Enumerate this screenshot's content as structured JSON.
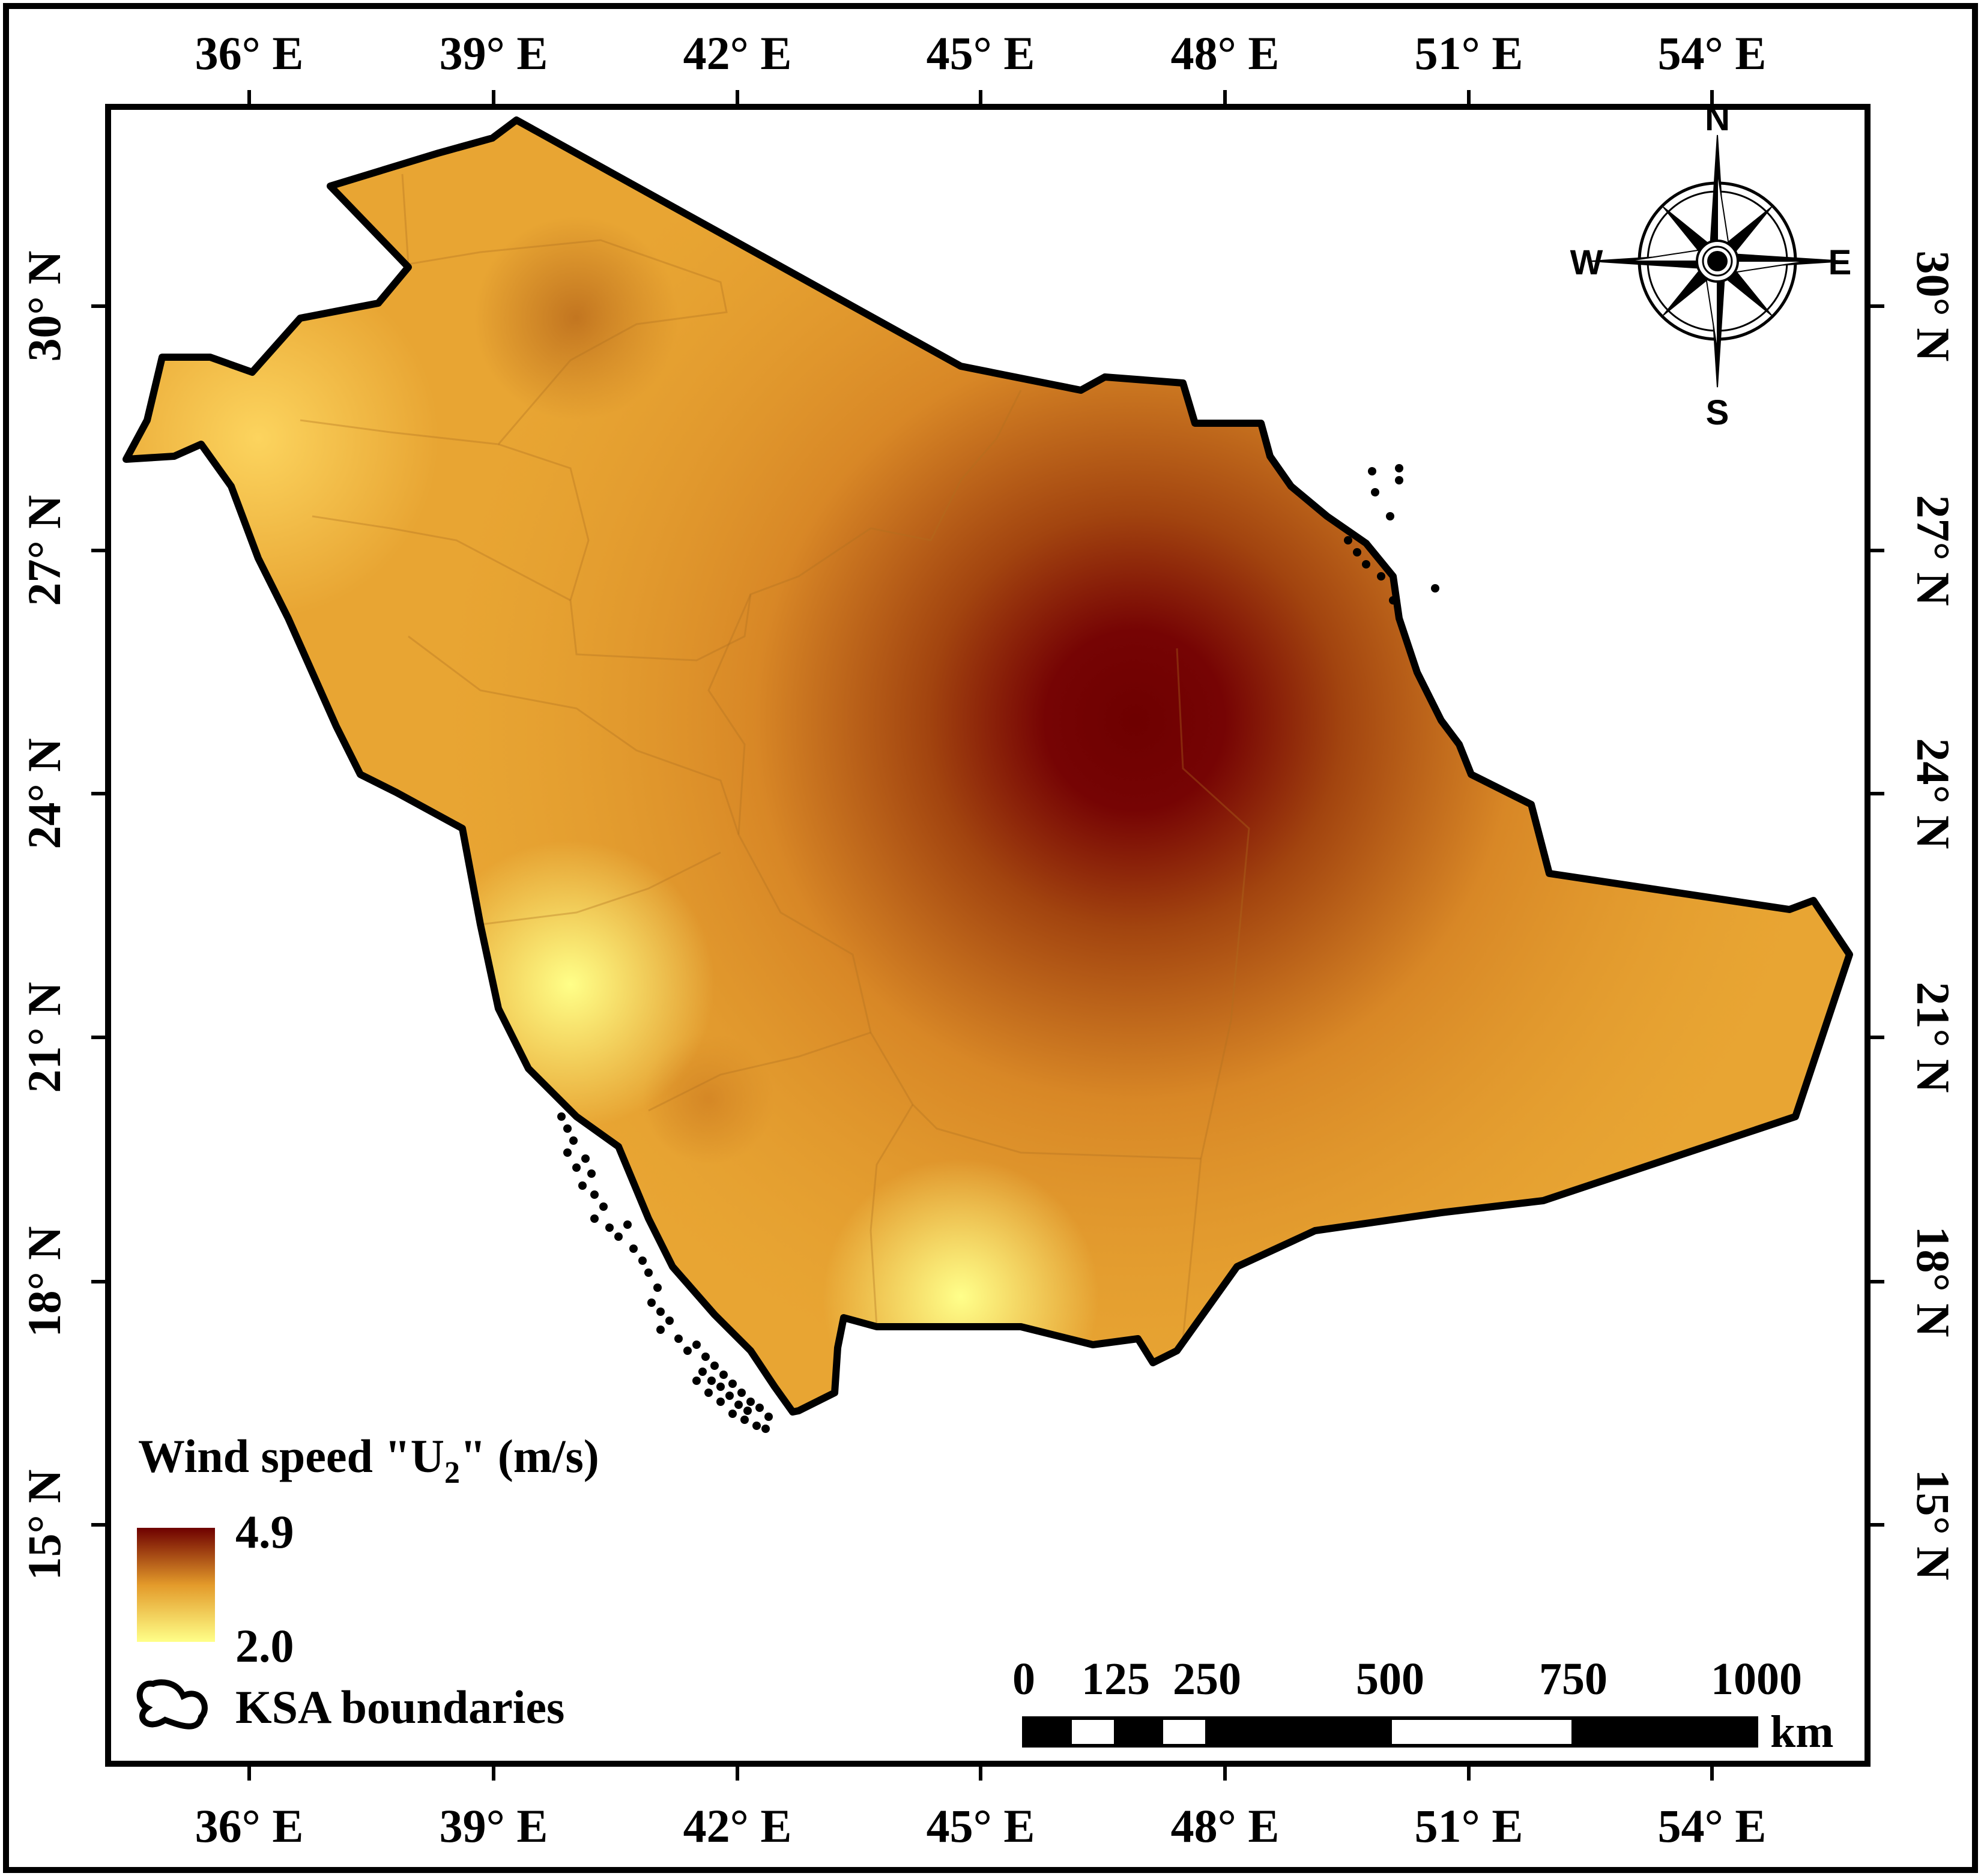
{
  "map": {
    "x_ticks": [
      "36° E",
      "39° E",
      "42° E",
      "45° E",
      "48° E",
      "51° E",
      "54° E"
    ],
    "y_ticks": [
      "30° N",
      "27° N",
      "24° N",
      "21° N",
      "18° N",
      "15° N"
    ],
    "layers": [
      "Wind speed U2 (interpolated surface)",
      "KSA boundaries"
    ]
  },
  "legend": {
    "title_main": "Wind speed \"U",
    "title_sub": "2",
    "title_end": "\" (m/s)",
    "max_label": "4.9",
    "min_label": "2.0",
    "max_value": 4.9,
    "min_value": 2.0,
    "color_max": "#6e0000",
    "color_mid": "#e39a2a",
    "color_min": "#ffff88",
    "boundary_label": "KSA boundaries"
  },
  "compass": {
    "n": "N",
    "s": "S",
    "e": "E",
    "w": "W"
  },
  "scalebar": {
    "labels": [
      "0",
      "125",
      "250",
      "500",
      "750",
      "1000"
    ],
    "unit": "km"
  }
}
